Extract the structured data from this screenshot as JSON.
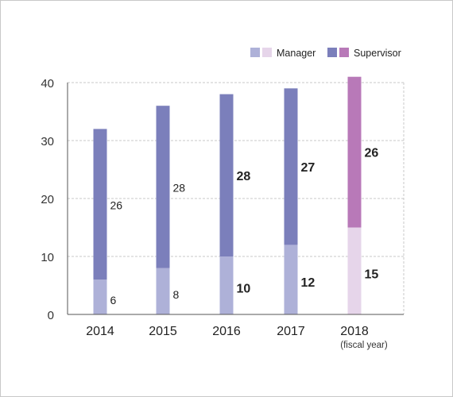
{
  "chart_data": {
    "type": "bar",
    "stacked": true,
    "categories": [
      "2014",
      "2015",
      "2016",
      "2017",
      "2018"
    ],
    "category_note": "(fiscal year)",
    "series": [
      {
        "name": "Manager",
        "values": [
          6,
          8,
          10,
          12,
          15
        ]
      },
      {
        "name": "Supervisor",
        "values": [
          26,
          28,
          28,
          27,
          26
        ]
      }
    ],
    "data_labels": {
      "Manager": [
        "6",
        "8",
        "10",
        "12",
        "15"
      ],
      "Supervisor": [
        "26",
        "28",
        "28",
        "27",
        "26"
      ]
    },
    "emphasis": [
      false,
      false,
      true,
      true,
      true
    ],
    "ylim": [
      0,
      40
    ],
    "yticks": [
      "0",
      "10",
      "20",
      "30",
      "40"
    ],
    "grid": true,
    "legend_position": "top-right",
    "legend": [
      {
        "label": "Manager",
        "colors": [
          "#aeb1d8",
          "#e6d5ea"
        ]
      },
      {
        "label": "Supervisor",
        "colors": [
          "#7b7fbb",
          "#b879b8"
        ]
      }
    ],
    "colors": {
      "manager": "#aeb1d8",
      "supervisor": "#7b7fbb",
      "manager_highlight": "#e6d5ea",
      "supervisor_highlight": "#b879b8",
      "highlight_index": 4
    }
  }
}
